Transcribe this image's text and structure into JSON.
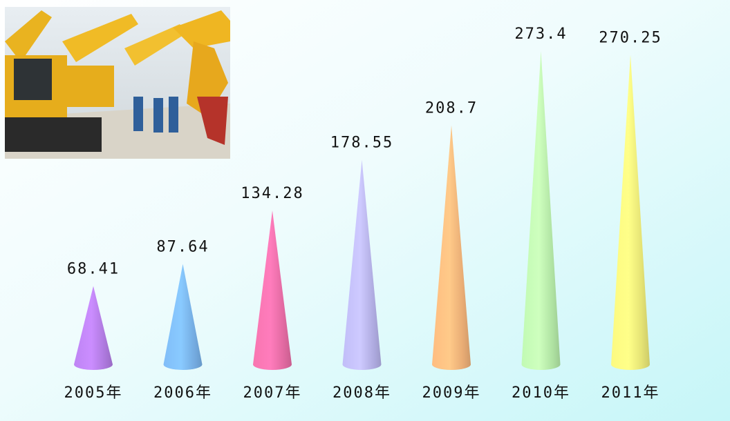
{
  "chart_data": {
    "type": "cone",
    "categories": [
      "2005年",
      "2006年",
      "2007年",
      "2008年",
      "2009年",
      "2010年",
      "2011年"
    ],
    "values": [
      68.41,
      87.64,
      134.28,
      178.55,
      208.7,
      273.4,
      270.25
    ],
    "colors": [
      "#b57ee8",
      "#7ab4ec",
      "#ec6fa8",
      "#b8b4ec",
      "#f4b47a",
      "#b8eeaa",
      "#f0ee7a"
    ]
  }
}
